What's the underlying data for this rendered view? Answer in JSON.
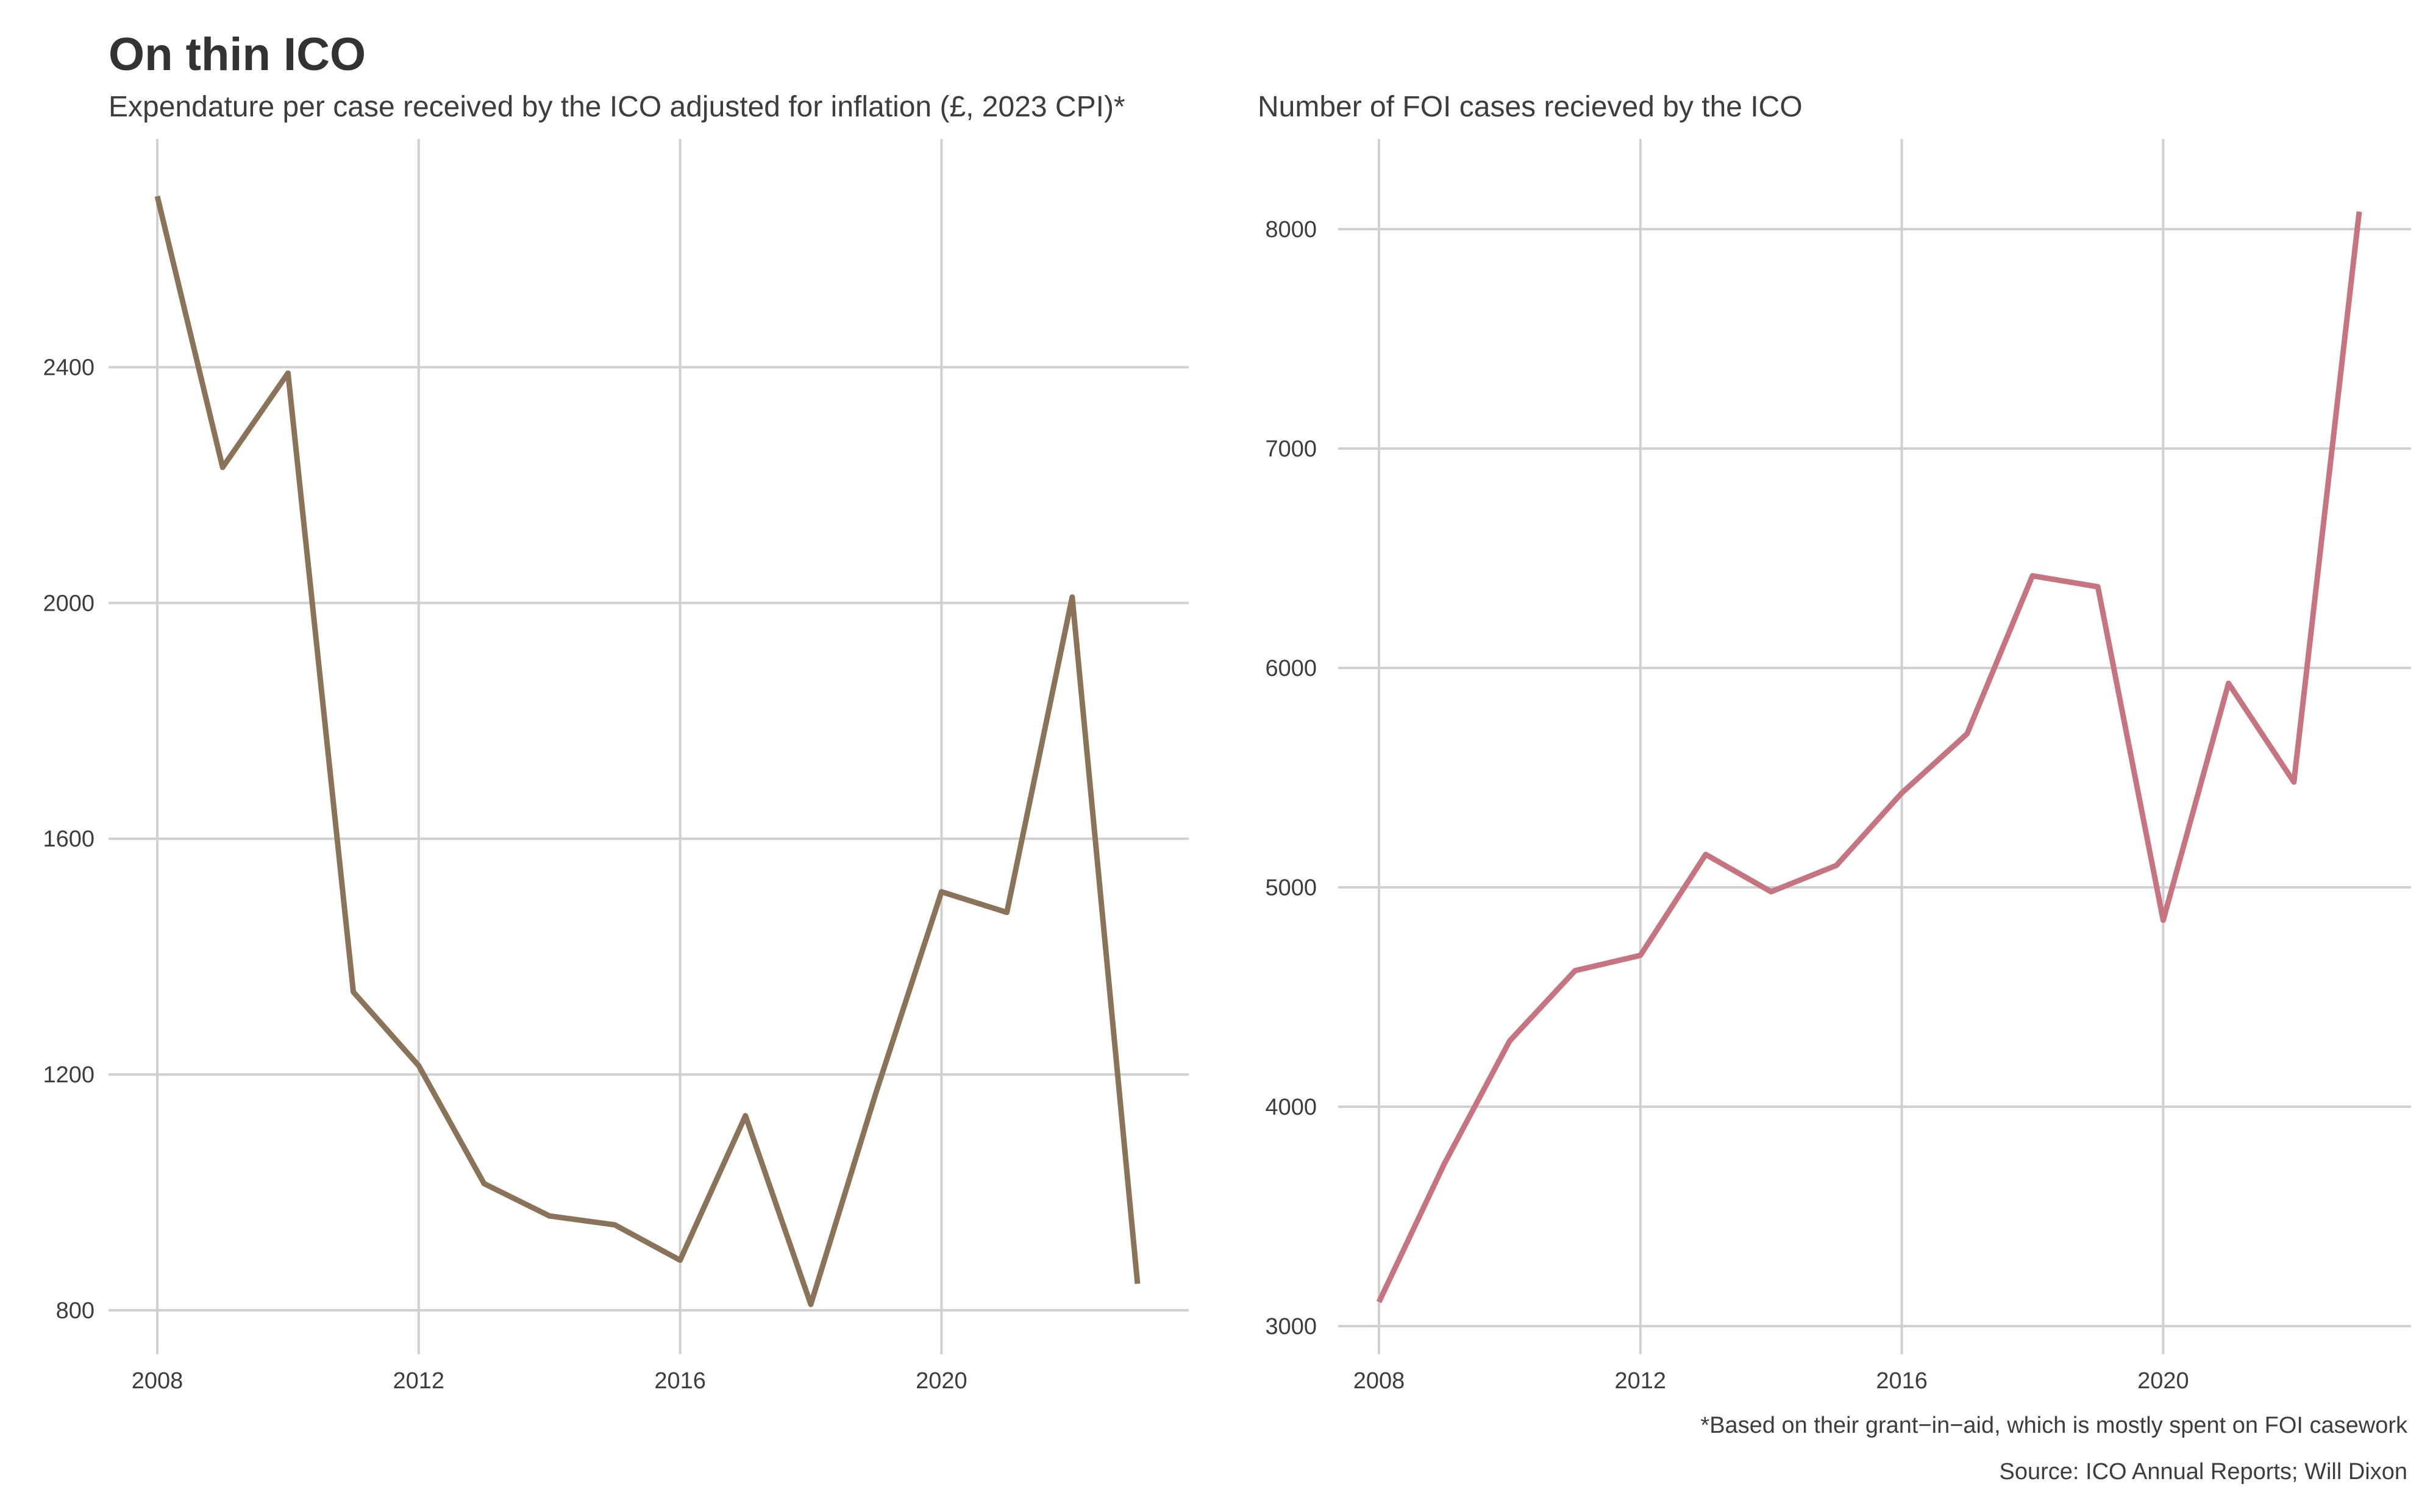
{
  "header": {
    "title": "On thin ICO"
  },
  "footer": {
    "note": "*Based on their grant−in−aid, which is mostly spent on FOI casework",
    "source": "Source: ICO Annual Reports; Will Dixon"
  },
  "chart_data": [
    {
      "type": "line",
      "title": "Expendature per case received by the ICO adjusted for inflation (£, 2023 CPI)*",
      "xlabel": "",
      "ylabel": "",
      "color": "#8b7359",
      "grid": true,
      "xlim": [
        2008,
        2023
      ],
      "ylim": [
        800,
        2690
      ],
      "xticks": [
        2008,
        2012,
        2016,
        2020
      ],
      "yticks": [
        800,
        1200,
        1600,
        2000,
        2400
      ],
      "series": [
        {
          "x": [
            2008,
            2009,
            2010,
            2011,
            2012,
            2013,
            2014,
            2015,
            2016,
            2017,
            2018,
            2019,
            2020,
            2021,
            2022,
            2023
          ],
          "values": [
            2690,
            2230,
            2390,
            1340,
            1215,
            1015,
            960,
            945,
            885,
            1130,
            810,
            1170,
            1510,
            1475,
            2010,
            845
          ]
        }
      ]
    },
    {
      "type": "line",
      "title": "Number of FOI cases recieved by the ICO",
      "xlabel": "",
      "ylabel": "",
      "color": "#c6747f",
      "grid": true,
      "xlim": [
        2008,
        2023
      ],
      "ylim": [
        3000,
        8150
      ],
      "xticks": [
        2008,
        2012,
        2016,
        2020
      ],
      "yticks": [
        3000,
        4000,
        5000,
        6000,
        7000,
        8000
      ],
      "series": [
        {
          "x": [
            2008,
            2009,
            2010,
            2011,
            2012,
            2013,
            2014,
            2015,
            2016,
            2017,
            2018,
            2019,
            2020,
            2021,
            2022,
            2023
          ],
          "values": [
            3110,
            3740,
            4300,
            4620,
            4690,
            5150,
            4980,
            5100,
            5430,
            5700,
            6420,
            6370,
            4850,
            5930,
            5480,
            8080
          ]
        }
      ]
    }
  ]
}
